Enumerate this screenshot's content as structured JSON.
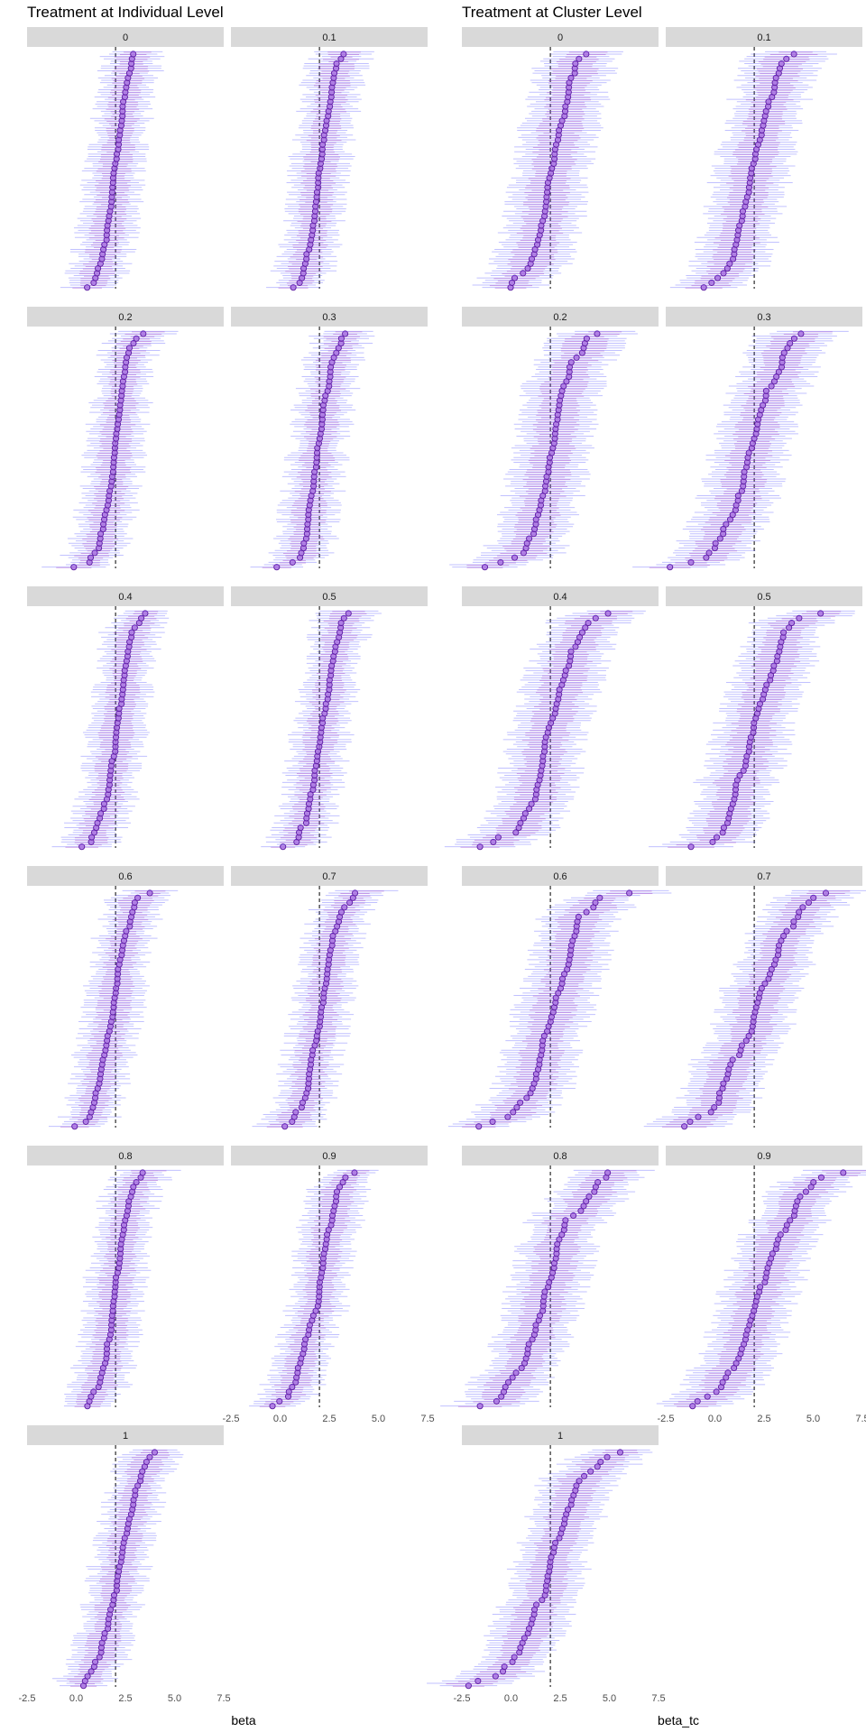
{
  "chart_data": [
    {
      "type": "forest",
      "title": "Treatment at Individual Level",
      "xlabel": "beta",
      "ylabel": "",
      "xlim": [
        -2.5,
        7.5
      ],
      "x_ticks": [
        -2.5,
        0.0,
        2.5,
        5.0,
        7.5
      ],
      "x_tick_labels": [
        "-2.5",
        "0.0",
        "2.5",
        "5.0",
        "7.5"
      ],
      "reference_line": 2.0,
      "panels": [
        "0",
        "0.1",
        "0.2",
        "0.3",
        "0.4",
        "0.5",
        "0.6",
        "0.7",
        "0.8",
        "0.9",
        "1"
      ],
      "estimates_per_panel": 100,
      "grid": false
    },
    {
      "type": "forest",
      "title": "Treatment at Cluster Level",
      "xlabel": "beta_tc",
      "ylabel": "",
      "xlim": [
        -2.5,
        7.5
      ],
      "x_ticks": [
        -2.5,
        0.0,
        2.5,
        5.0,
        7.5
      ],
      "x_tick_labels": [
        "-2.5",
        "0.0",
        "2.5",
        "5.0",
        "7.5"
      ],
      "reference_line": 2.0,
      "panels": [
        "0",
        "0.1",
        "0.2",
        "0.3",
        "0.4",
        "0.5",
        "0.6",
        "0.7",
        "0.8",
        "0.9",
        "1"
      ],
      "estimates_per_panel": 100,
      "grid": false
    }
  ],
  "colors": {
    "strip_bg": "#d9d9d9",
    "point_fill": "#a56de0",
    "point_stroke": "#5a1aa0",
    "interval_blue": "#4d4dff",
    "interval_purple": "#9b3fc9",
    "reference_line": "#000000"
  }
}
